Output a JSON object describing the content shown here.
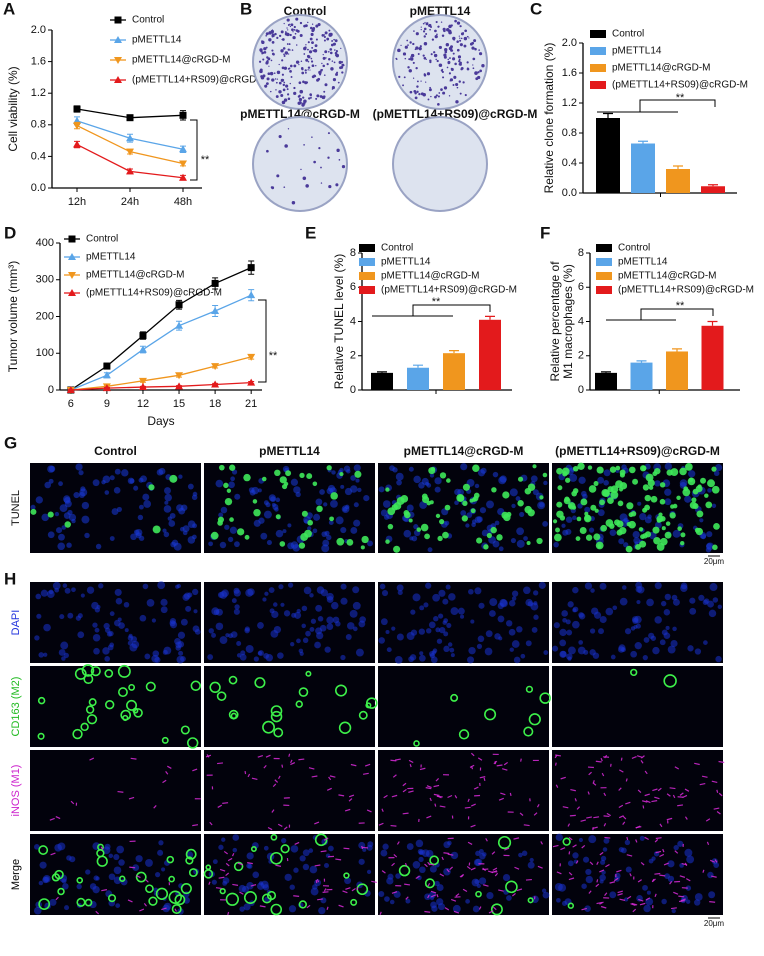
{
  "panels": [
    "A",
    "B",
    "C",
    "D",
    "E",
    "F",
    "G",
    "H"
  ],
  "chart_data": [
    {
      "type": "line",
      "ylabel": "Cell viability (%)",
      "categories": [
        "12h",
        "24h",
        "48h"
      ],
      "ylim": [
        0,
        2
      ],
      "yticks": [
        {
          "value": 0,
          "label": "0.0"
        },
        0.4,
        0.8,
        1.2,
        1.6,
        {
          "value": 2,
          "label": "2.0"
        }
      ],
      "series": [
        {
          "name": "Control",
          "color": "#000000",
          "marker": "square",
          "values": [
            1.0,
            0.89,
            0.92
          ],
          "errors": [
            0.04,
            0.03,
            0.06
          ]
        },
        {
          "name": "pMETTL14",
          "color": "#5aa5e8",
          "marker": "triangle-up",
          "values": [
            0.85,
            0.63,
            0.49
          ],
          "errors": [
            0.05,
            0.05,
            0.04
          ]
        },
        {
          "name": "pMETTL14@cRGD-M",
          "color": "#f0961e",
          "marker": "triangle-down",
          "values": [
            0.79,
            0.46,
            0.31
          ],
          "errors": [
            0.04,
            0.03,
            0.03
          ]
        },
        {
          "name": "(pMETTL14+RS09)@cRGD-M",
          "color": "#e31a1c",
          "marker": "triangle-up",
          "values": [
            0.55,
            0.21,
            0.13
          ],
          "errors": [
            0.04,
            0.03,
            0.03
          ]
        }
      ],
      "annotation": "**"
    },
    {
      "type": "bar",
      "ylabel": "Relative clone formation (%)",
      "ylim": [
        0,
        2
      ],
      "yticks": [
        {
          "value": 0,
          "label": "0.0"
        },
        0.4,
        0.8,
        1.2,
        1.6,
        {
          "value": 2,
          "label": "2.0"
        }
      ],
      "series": [
        {
          "name": "Control",
          "color": "#000000",
          "values": [
            1.0
          ],
          "errors": [
            0.06
          ]
        },
        {
          "name": "pMETTL14",
          "color": "#5aa5e8",
          "values": [
            0.66
          ],
          "errors": [
            0.03
          ]
        },
        {
          "name": "pMETTL14@cRGD-M",
          "color": "#f0961e",
          "values": [
            0.32
          ],
          "errors": [
            0.04
          ]
        },
        {
          "name": "(pMETTL14+RS09)@cRGD-M",
          "color": "#e31a1c",
          "values": [
            0.09
          ],
          "errors": [
            0.02
          ]
        }
      ],
      "annotation": "**"
    },
    {
      "type": "line",
      "ylabel": "Tumor volume (mm³)",
      "xlabel": "Days",
      "x": [
        6,
        9,
        12,
        15,
        18,
        21
      ],
      "xlim": [
        5.1,
        21.9
      ],
      "xticks": [
        6,
        9,
        12,
        15,
        18,
        21
      ],
      "ylim": [
        0,
        400
      ],
      "yticks": [
        0,
        100,
        200,
        300,
        400
      ],
      "series": [
        {
          "name": "Control",
          "color": "#000000",
          "marker": "square",
          "values": [
            0,
            65,
            148,
            232,
            290,
            333
          ],
          "errors": [
            2,
            8,
            10,
            12,
            15,
            18
          ]
        },
        {
          "name": "pMETTL14",
          "color": "#5aa5e8",
          "marker": "triangle-up",
          "values": [
            0,
            40,
            110,
            175,
            215,
            258
          ],
          "errors": [
            2,
            7,
            9,
            12,
            15,
            15
          ]
        },
        {
          "name": "pMETTL14@cRGD-M",
          "color": "#f0961e",
          "marker": "triangle-down",
          "values": [
            0,
            10,
            25,
            40,
            65,
            90
          ],
          "errors": [
            1,
            3,
            4,
            5,
            5,
            6
          ]
        },
        {
          "name": "(pMETTL14+RS09)@cRGD-M",
          "color": "#e31a1c",
          "marker": "triangle-up",
          "values": [
            0,
            5,
            8,
            10,
            15,
            20
          ],
          "errors": [
            1,
            2,
            2,
            2,
            3,
            3
          ]
        }
      ],
      "annotation": "**"
    },
    {
      "type": "bar",
      "ylabel": "Relative TUNEL level (%)",
      "ylim": [
        0,
        8
      ],
      "yticks": [
        0,
        2,
        4,
        6,
        8
      ],
      "series": [
        {
          "name": "Control",
          "color": "#000000",
          "values": [
            1.0
          ],
          "errors": [
            0.06
          ]
        },
        {
          "name": "pMETTL14",
          "color": "#5aa5e8",
          "values": [
            1.3
          ],
          "errors": [
            0.15
          ]
        },
        {
          "name": "pMETTL14@cRGD-M",
          "color": "#f0961e",
          "values": [
            2.15
          ],
          "errors": [
            0.15
          ]
        },
        {
          "name": "(pMETTL14+RS09)@cRGD-M",
          "color": "#e31a1c",
          "values": [
            4.1
          ],
          "errors": [
            0.2
          ]
        }
      ],
      "annotation": "**"
    },
    {
      "type": "bar",
      "ylabel": [
        "Relative percentage of",
        "M1 macrophages (%)"
      ],
      "ylim": [
        0,
        8
      ],
      "yticks": [
        0,
        2,
        4,
        6,
        8
      ],
      "series": [
        {
          "name": "Control",
          "color": "#000000",
          "values": [
            1.0
          ],
          "errors": [
            0.06
          ]
        },
        {
          "name": "pMETTL14",
          "color": "#5aa5e8",
          "values": [
            1.6
          ],
          "errors": [
            0.1
          ]
        },
        {
          "name": "pMETTL14@cRGD-M",
          "color": "#f0961e",
          "values": [
            2.25
          ],
          "errors": [
            0.15
          ]
        },
        {
          "name": "(pMETTL14+RS09)@cRGD-M",
          "color": "#e31a1c",
          "values": [
            3.75
          ],
          "errors": [
            0.25
          ]
        }
      ],
      "annotation": "**"
    }
  ],
  "images": {
    "B": {
      "labels": [
        "Control",
        "pMETTL14",
        "pMETTL14@cRGD-M",
        "(pMETTL14+RS09)@cRGD-M"
      ]
    },
    "G": {
      "columns": [
        "Control",
        "pMETTL14",
        "pMETTL14@cRGD-M",
        "(pMETTL14+RS09)@cRGD-M"
      ],
      "row": "TUNEL",
      "scale": "20μm"
    },
    "H": {
      "rows": [
        "DAPI",
        "CD163 (M2)",
        "iNOS (M1)",
        "Merge"
      ],
      "scale": "20μm"
    }
  }
}
